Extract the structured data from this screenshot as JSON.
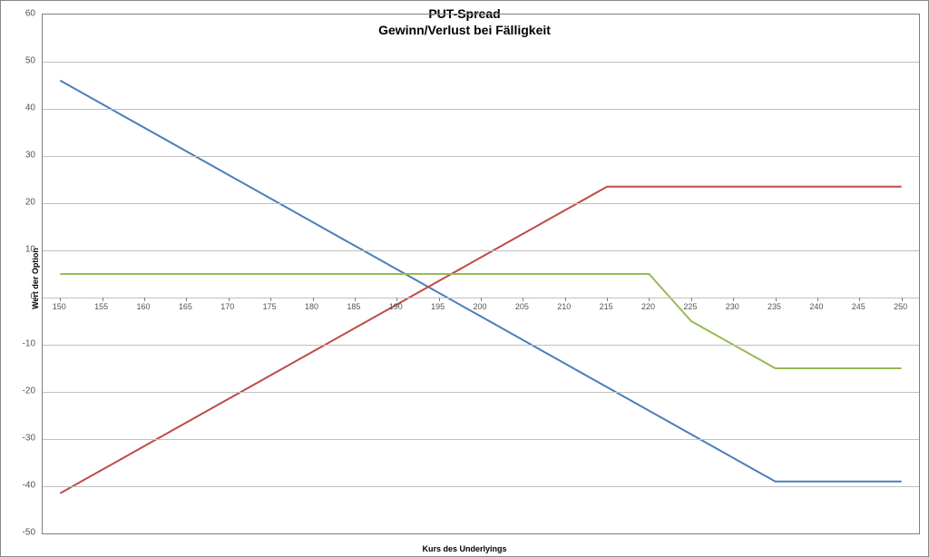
{
  "chart": {
    "type": "line",
    "title_line1": "PUT-Spread",
    "title_line2": "Gewinn/Verlust bei Fälligkeit",
    "title_fontsize": 14,
    "title_fontweight": "bold",
    "x_axis_title": "Kurs des Underlyings",
    "y_axis_title": "Wert der Option",
    "axis_title_fontsize": 9,
    "tick_fontsize": 10,
    "background_color": "#ffffff",
    "grid_color": "#c0c0c0",
    "border_color": "#808080",
    "x_categories": [
      "150",
      "155",
      "160",
      "165",
      "170",
      "175",
      "180",
      "185",
      "190",
      "195",
      "200",
      "205",
      "210",
      "215",
      "220",
      "225",
      "230",
      "235",
      "240",
      "245",
      "250"
    ],
    "ylim": [
      -50,
      60
    ],
    "ytick_step": 10,
    "y_ticks": [
      -50,
      -40,
      -30,
      -20,
      -10,
      0,
      10,
      20,
      30,
      40,
      50,
      60
    ],
    "line_width": 2,
    "series": [
      {
        "name": "Blue",
        "color": "#4a7ebb",
        "y": [
          46,
          41,
          36,
          31,
          26,
          21,
          16,
          11,
          6,
          1,
          -4,
          -9,
          -14,
          -19,
          -24,
          -29,
          -34,
          -39,
          -39,
          -39,
          -39
        ]
      },
      {
        "name": "Red",
        "color": "#be4b48",
        "y": [
          -41.5,
          -36.5,
          -31.5,
          -26.5,
          -21.5,
          -16.5,
          -11.5,
          -6.5,
          -1.5,
          3.5,
          8.5,
          13.5,
          18.5,
          23.5,
          23.5,
          23.5,
          23.5,
          23.5,
          23.5,
          23.5,
          23.5
        ]
      },
      {
        "name": "Green",
        "color": "#98b954",
        "y": [
          5,
          5,
          5,
          5,
          5,
          5,
          5,
          5,
          5,
          5,
          5,
          5,
          5,
          5,
          5,
          -5,
          -10,
          -15,
          -15,
          -15,
          -15
        ]
      }
    ]
  }
}
